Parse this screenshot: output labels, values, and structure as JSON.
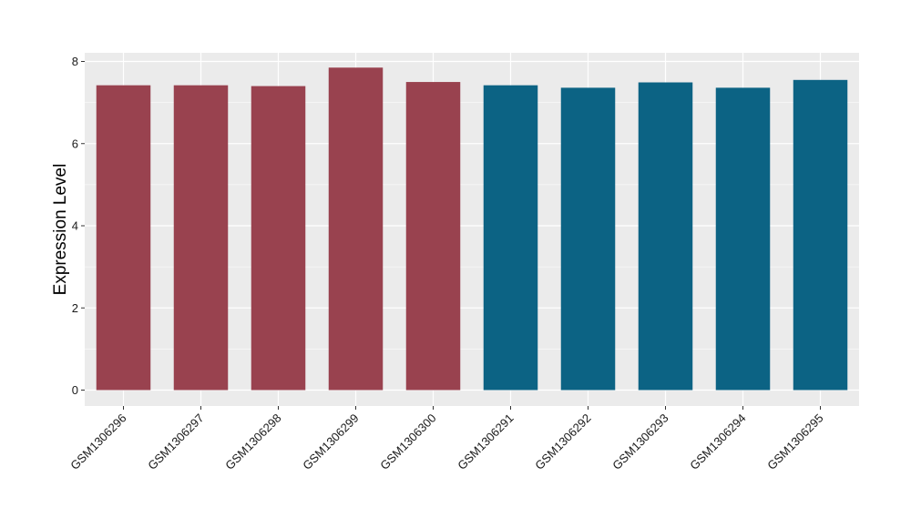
{
  "chart_data": {
    "type": "bar",
    "title": "",
    "xlabel": "",
    "ylabel": "Expression Level",
    "ylim": [
      0,
      8.2
    ],
    "y_ticks": [
      0,
      2,
      4,
      6,
      8
    ],
    "grid": true,
    "legend": "none",
    "categories": [
      "GSM1306296",
      "GSM1306297",
      "GSM1306298",
      "GSM1306299",
      "GSM1306300",
      "GSM1306291",
      "GSM1306292",
      "GSM1306293",
      "GSM1306294",
      "GSM1306295"
    ],
    "values": [
      7.42,
      7.42,
      7.4,
      7.85,
      7.5,
      7.42,
      7.36,
      7.49,
      7.36,
      7.55
    ],
    "bar_colors": [
      "#99424f",
      "#99424f",
      "#99424f",
      "#99424f",
      "#99424f",
      "#0c6384",
      "#0c6384",
      "#0c6384",
      "#0c6384",
      "#0c6384"
    ],
    "panel_background": "#ebebeb",
    "gridline_color": "#ffffff"
  }
}
